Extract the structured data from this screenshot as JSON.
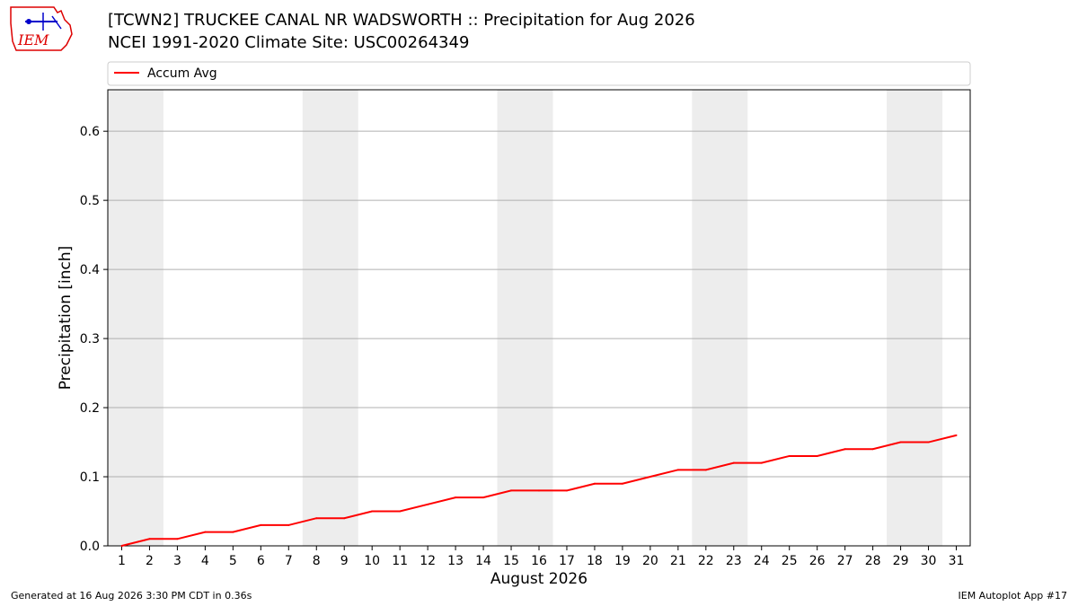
{
  "header": {
    "title_line1": "[TCWN2] TRUCKEE CANAL NR WADSWORTH :: Precipitation for Aug 2026",
    "title_line2": "NCEI 1991-2020 Climate Site: USC00264349"
  },
  "logo": {
    "text": "IEM"
  },
  "footer": {
    "left": "Generated at 16 Aug 2026 3:30 PM CDT in 0.36s",
    "right": "IEM Autoplot App #17"
  },
  "colors": {
    "line": "#ff0000",
    "weekend_band": "#ededed",
    "grid": "#b0b0b0"
  },
  "chart_data": {
    "type": "line",
    "title": "[TCWN2] TRUCKEE CANAL NR WADSWORTH :: Precipitation for Aug 2026",
    "subtitle": "NCEI 1991-2020 Climate Site: USC00264349",
    "xlabel": "August 2026",
    "ylabel": "Precipitation [inch]",
    "x": [
      1,
      2,
      3,
      4,
      5,
      6,
      7,
      8,
      9,
      10,
      11,
      12,
      13,
      14,
      15,
      16,
      17,
      18,
      19,
      20,
      21,
      22,
      23,
      24,
      25,
      26,
      27,
      28,
      29,
      30,
      31
    ],
    "x_ticks": [
      "1",
      "2",
      "3",
      "4",
      "5",
      "6",
      "7",
      "8",
      "9",
      "10",
      "11",
      "12",
      "13",
      "14",
      "15",
      "16",
      "17",
      "18",
      "19",
      "20",
      "21",
      "22",
      "23",
      "24",
      "25",
      "26",
      "27",
      "28",
      "29",
      "30",
      "31"
    ],
    "xlim": [
      0.5,
      31.5
    ],
    "ylim": [
      0,
      0.66
    ],
    "y_ticks": [
      "0.0",
      "0.1",
      "0.2",
      "0.3",
      "0.4",
      "0.5",
      "0.6"
    ],
    "y_tick_values": [
      0,
      0.1,
      0.2,
      0.3,
      0.4,
      0.5,
      0.6
    ],
    "grid": "horizontal",
    "legend_position": "top",
    "weekend_bands": [
      [
        1,
        2
      ],
      [
        8,
        9
      ],
      [
        15,
        16
      ],
      [
        22,
        23
      ],
      [
        29,
        30
      ]
    ],
    "series": [
      {
        "name": "Accum Avg",
        "values": [
          0.0,
          0.01,
          0.01,
          0.02,
          0.02,
          0.03,
          0.03,
          0.04,
          0.04,
          0.05,
          0.05,
          0.06,
          0.07,
          0.07,
          0.08,
          0.08,
          0.08,
          0.09,
          0.09,
          0.1,
          0.11,
          0.11,
          0.12,
          0.12,
          0.13,
          0.13,
          0.14,
          0.14,
          0.15,
          0.15,
          0.16
        ]
      }
    ]
  }
}
